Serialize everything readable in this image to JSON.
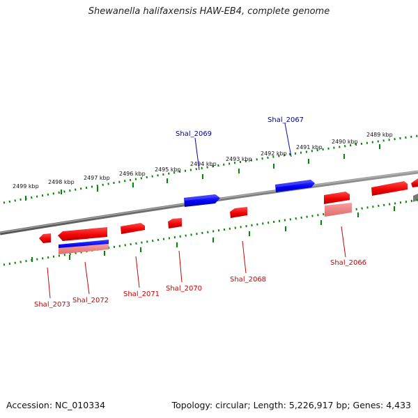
{
  "title": "Shewanella halifaxensis HAW-EB4, complete genome",
  "footer": {
    "accession": "Accession: NC_010334",
    "topology": "Topology: circular; Length: 5,226,917 bp; Genes: 4,433"
  },
  "kbp_labels": [
    "2499 kbp",
    "2498 kbp",
    "2497 kbp",
    "2496 kbp",
    "2495 kbp",
    "2494 kbp",
    "2493 kbp",
    "2492 kbp",
    "2491 kbp",
    "2490 kbp",
    "2489 kbp"
  ],
  "genes_top": [
    "Shal_2069",
    "Shal_2067"
  ],
  "genes_bottom": [
    "Shal_2073",
    "Shal_2072",
    "Shal_2071",
    "Shal_2070",
    "Shal_2068",
    "Shal_2066"
  ],
  "colors": {
    "forward": "#ff0000",
    "reverse": "#0000ff",
    "rna": "#f08080",
    "backbone": "#777777",
    "ticks": "#008800",
    "top_label": "#00008b",
    "bottom_label": "#cc0000"
  }
}
